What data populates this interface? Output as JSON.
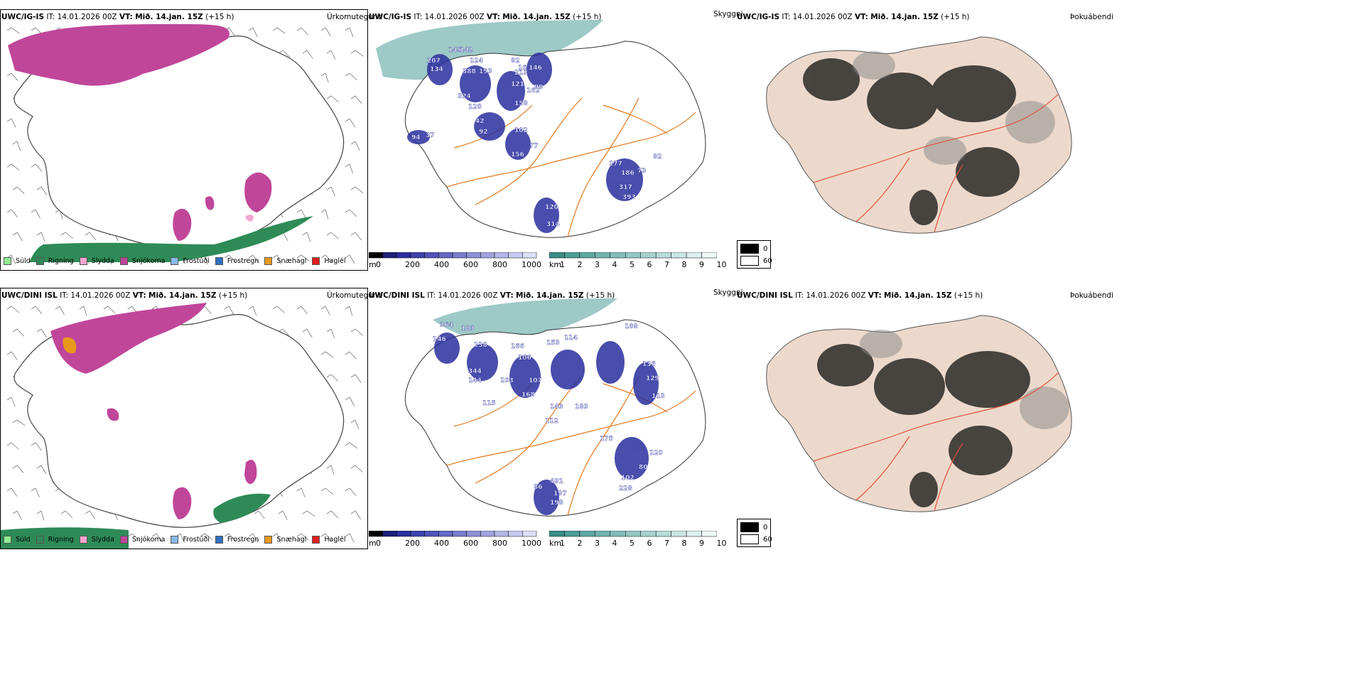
{
  "rows": [
    {
      "id": "igis",
      "precip": {
        "model": "UWC/IG-IS",
        "it_label": "IT:",
        "it_value": "14.01.2026 00Z",
        "vt_label": "VT:",
        "vt_value": "Mið. 14.jan. 15Z",
        "lead": "(+15 h)",
        "right_label": "Úrkomutegund"
      },
      "cloud": {
        "model": "UWC/IG-IS",
        "it_label": "IT:",
        "it_value": "14.01.2026 00Z",
        "vt_label": "VT:",
        "vt_value": "Mið. 14.jan. 15Z",
        "lead": "(+15 h)",
        "right_label": "Skyggni",
        "labels": [
          "145",
          "142",
          "207",
          "134",
          "388",
          "193",
          "124",
          "82",
          "16",
          "146",
          "213",
          "162",
          "121",
          "99",
          "324",
          "128",
          "158",
          "92",
          "102",
          "156",
          "77",
          "42",
          "94",
          "37",
          "177",
          "186",
          "73",
          "82",
          "317",
          "393",
          "120",
          "314"
        ]
      },
      "fog": {
        "model": "UWC/IG-IS",
        "it_label": "IT:",
        "it_value": "14.01.2026 00Z",
        "vt_label": "VT:",
        "vt_value": "Mið. 14.jan. 15Z",
        "lead": "(+15 h)",
        "right_label": "Þokuábendi"
      }
    },
    {
      "id": "dini",
      "precip": {
        "model": "UWC/DINI ISL",
        "it_label": "IT:",
        "it_value": "14.01.2026 00Z",
        "vt_label": "VT:",
        "vt_value": "Mið. 14.jan. 15Z",
        "lead": "(+15 h)",
        "right_label": "Úrkomutegund"
      },
      "cloud": {
        "model": "UWC/DINI ISL",
        "it_label": "IT:",
        "it_value": "14.01.2026 00Z",
        "vt_label": "VT:",
        "vt_value": "Mið. 14.jan. 15Z",
        "lead": "(+15 h)",
        "right_label": "Skyggni",
        "labels": [
          "364",
          "183",
          "146",
          "238",
          "344",
          "144",
          "166",
          "106",
          "153",
          "114",
          "115",
          "188",
          "103",
          "107",
          "168",
          "143",
          "183",
          "112",
          "136",
          "129",
          "491",
          "197",
          "198",
          "102",
          "80",
          "120",
          "228",
          "86",
          "175",
          "113"
        ]
      },
      "fog": {
        "model": "UWC/DINI ISL",
        "it_label": "IT:",
        "it_value": "14.01.2026 00Z",
        "vt_label": "VT:",
        "vt_value": "Mið. 14.jan. 15Z",
        "lead": "(+15 h)",
        "right_label": "Þokuábendi"
      }
    }
  ],
  "precip_legend": [
    {
      "label": "Súld",
      "color": "#90ee90"
    },
    {
      "label": "Rigning",
      "color": "#2e8b57"
    },
    {
      "label": "Slydda",
      "color": "#f4a6d0"
    },
    {
      "label": "Snjókoma",
      "color": "#c0469a"
    },
    {
      "label": "Frostúði",
      "color": "#87b9e8"
    },
    {
      "label": "Frostregn",
      "color": "#2f6fc1"
    },
    {
      "label": "Snæhagl",
      "color": "#e89a1c"
    },
    {
      "label": "Haglél",
      "color": "#e02020"
    }
  ],
  "scales": {
    "m_unit": "m",
    "m_ticks": [
      "0",
      "200",
      "400",
      "600",
      "800",
      "1000"
    ],
    "km_unit": "km",
    "km_ticks": [
      "1",
      "2",
      "3",
      "4",
      "5",
      "6",
      "7",
      "8",
      "9",
      "10"
    ],
    "fog_legend": [
      {
        "label": "0",
        "color": "#000000"
      },
      {
        "label": "60",
        "color": "#ffffff"
      }
    ]
  },
  "colors": {
    "snow": "#c0469a",
    "rain": "#2e8b57",
    "cloud_blue": "#2a2f9e",
    "fog_teal": "#4c9c97",
    "roads_orange": "#e07a20",
    "fog_land": "#ecd9cc",
    "fog_roads": "#e0503a"
  }
}
